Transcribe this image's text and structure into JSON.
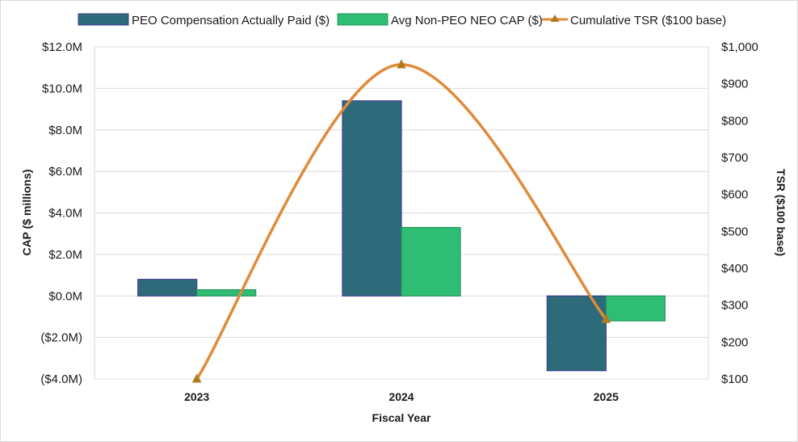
{
  "chart_data": {
    "type": "bar",
    "categories": [
      "2023",
      "2024",
      "2025"
    ],
    "xlabel": "Fiscal Year",
    "ylabel": "CAP ($ millions)",
    "y2label": "TSR ($100 base)",
    "ylim": [
      -4,
      12
    ],
    "y2lim": [
      100,
      1000
    ],
    "yticks": [
      {
        "value": 12,
        "label": "$12.0M"
      },
      {
        "value": 10,
        "label": "$10.0M"
      },
      {
        "value": 8,
        "label": "$8.0M"
      },
      {
        "value": 6,
        "label": "$6.0M"
      },
      {
        "value": 4,
        "label": "$4.0M"
      },
      {
        "value": 2,
        "label": "$2.0M"
      },
      {
        "value": 0,
        "label": "$0.0M"
      },
      {
        "value": -2,
        "label": "($2.0M)"
      },
      {
        "value": -4,
        "label": "($4.0M)"
      }
    ],
    "y2ticks": [
      {
        "value": 1000,
        "label": "$1,000"
      },
      {
        "value": 900,
        "label": "$900"
      },
      {
        "value": 800,
        "label": "$800"
      },
      {
        "value": 700,
        "label": "$700"
      },
      {
        "value": 600,
        "label": "$600"
      },
      {
        "value": 500,
        "label": "$500"
      },
      {
        "value": 400,
        "label": "$400"
      },
      {
        "value": 300,
        "label": "$300"
      },
      {
        "value": 200,
        "label": "$200"
      },
      {
        "value": 100,
        "label": "$100"
      }
    ],
    "grid": true,
    "legend_position": "top",
    "series": [
      {
        "name": "PEO Compensation Actually Paid ($)",
        "type": "bar",
        "axis": "left",
        "color": "#2e6b7a",
        "stroke": "#3b3f8f",
        "values": [
          0.8,
          9.4,
          -3.6
        ]
      },
      {
        "name": "Avg Non-PEO NEO CAP ($)",
        "type": "bar",
        "axis": "left",
        "color": "#2ebd73",
        "stroke": "#23945a",
        "values": [
          0.3,
          3.3,
          -1.2
        ]
      },
      {
        "name": "Cumulative TSR ($100 base)",
        "type": "line",
        "axis": "right",
        "color": "#e08a3a",
        "marker_color": "#b07a1f",
        "values": [
          100,
          952,
          262
        ]
      }
    ]
  }
}
